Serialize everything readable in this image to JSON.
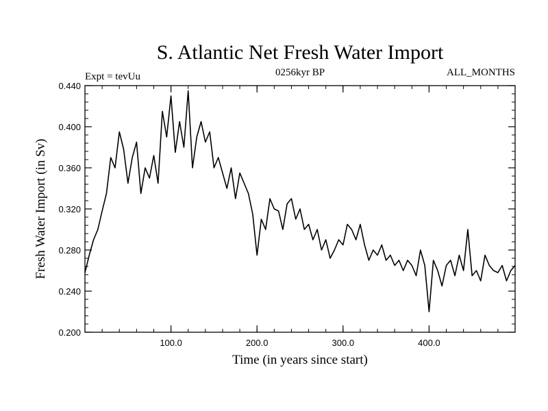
{
  "chart_data": {
    "type": "line",
    "title": "S. Atlantic Net Fresh Water Import",
    "subtitle_left": "Expt = tevUu",
    "subtitle_center": "0256kyr BP",
    "subtitle_right": "ALL_MONTHS",
    "xlabel": "Time (in years since start)",
    "ylabel": "Fresh Water Import (in Sv)",
    "xlim": [
      0,
      500
    ],
    "ylim": [
      0.2,
      0.44
    ],
    "x_ticks": [
      100,
      200,
      300,
      400
    ],
    "x_tick_labels": [
      "100.0",
      "200.0",
      "300.0",
      "400.0"
    ],
    "y_ticks": [
      0.2,
      0.24,
      0.28,
      0.32,
      0.36,
      0.4,
      0.44
    ],
    "y_tick_labels": [
      "0.200",
      "0.240",
      "0.280",
      "0.320",
      "0.360",
      "0.400",
      "0.440"
    ],
    "x_minor_step": 20,
    "y_minor_step": 0.008,
    "grid": false,
    "legend": "none",
    "line_color": "#000000",
    "series": [
      {
        "x": [
          0,
          5,
          10,
          15,
          20,
          25,
          30,
          35,
          40,
          45,
          50,
          55,
          60,
          65,
          70,
          75,
          80,
          85,
          90,
          95,
          100,
          105,
          110,
          115,
          120,
          125,
          130,
          135,
          140,
          145,
          150,
          155,
          160,
          165,
          170,
          175,
          180,
          185,
          190,
          195,
          200,
          205,
          210,
          215,
          220,
          225,
          230,
          235,
          240,
          245,
          250,
          255,
          260,
          265,
          270,
          275,
          280,
          285,
          290,
          295,
          300,
          305,
          310,
          315,
          320,
          325,
          330,
          335,
          340,
          345,
          350,
          355,
          360,
          365,
          370,
          375,
          380,
          385,
          390,
          395,
          400,
          405,
          410,
          415,
          420,
          425,
          430,
          435,
          440,
          445,
          450,
          455,
          460,
          465,
          470,
          475,
          480,
          485,
          490,
          495,
          500
        ],
        "values": [
          0.258,
          0.275,
          0.29,
          0.3,
          0.318,
          0.335,
          0.37,
          0.36,
          0.395,
          0.378,
          0.345,
          0.37,
          0.385,
          0.335,
          0.36,
          0.35,
          0.372,
          0.345,
          0.415,
          0.39,
          0.43,
          0.375,
          0.405,
          0.38,
          0.435,
          0.36,
          0.39,
          0.405,
          0.385,
          0.395,
          0.36,
          0.37,
          0.355,
          0.34,
          0.36,
          0.33,
          0.355,
          0.345,
          0.335,
          0.315,
          0.275,
          0.31,
          0.3,
          0.33,
          0.32,
          0.318,
          0.3,
          0.325,
          0.33,
          0.31,
          0.32,
          0.3,
          0.305,
          0.29,
          0.3,
          0.28,
          0.29,
          0.272,
          0.28,
          0.29,
          0.285,
          0.305,
          0.3,
          0.29,
          0.305,
          0.285,
          0.27,
          0.28,
          0.275,
          0.285,
          0.27,
          0.275,
          0.265,
          0.27,
          0.26,
          0.27,
          0.265,
          0.255,
          0.28,
          0.265,
          0.22,
          0.27,
          0.26,
          0.245,
          0.265,
          0.27,
          0.255,
          0.275,
          0.26,
          0.3,
          0.255,
          0.26,
          0.25,
          0.275,
          0.265,
          0.26,
          0.258,
          0.265,
          0.25,
          0.26,
          0.265
        ]
      }
    ]
  }
}
